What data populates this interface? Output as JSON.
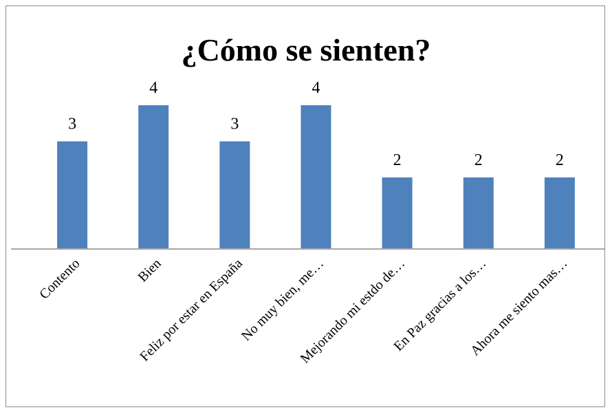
{
  "chart_data": {
    "type": "bar",
    "title": "¿Cómo se sienten?",
    "categories": [
      "Contento",
      "Bien",
      "Feliz por estar en España",
      "No muy bien, me…",
      "Mejorando mi estdo de…",
      "En Paz gracias a los…",
      "Ahora me siento mas…"
    ],
    "values": [
      3,
      4,
      3,
      4,
      2,
      2,
      2
    ],
    "data_labels": [
      "3",
      "4",
      "3",
      "4",
      "2",
      "2",
      "2"
    ],
    "xlabel": "",
    "ylabel": "",
    "ylim": [
      0,
      4
    ],
    "grid": false,
    "legend": "none",
    "colors": {
      "bar": "#4f81bd",
      "bar_edge": "#ffffff",
      "axis": "#8c8c8c",
      "text": "#000000"
    }
  }
}
